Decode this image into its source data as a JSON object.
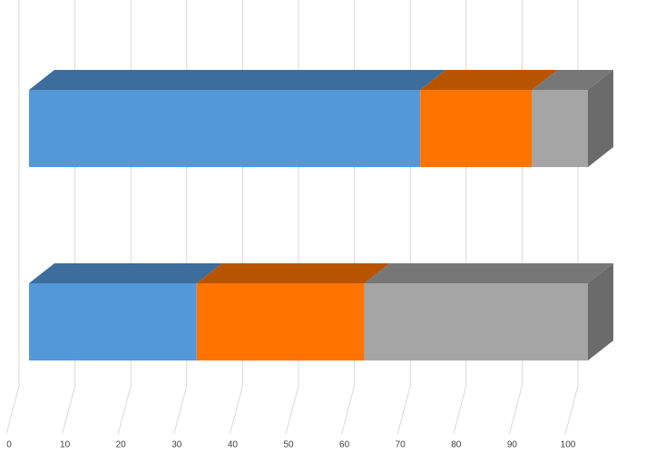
{
  "chart_data": {
    "type": "bar3d-stacked-horizontal",
    "categories": [
      null,
      null
    ],
    "series": [
      {
        "color": "#5398d9",
        "values": [
          70,
          30
        ]
      },
      {
        "color": "#ff7400",
        "values": [
          20,
          30
        ]
      },
      {
        "color": "#a5a5a5",
        "values": [
          10,
          40
        ]
      }
    ],
    "xlim": [
      0,
      100
    ],
    "xticks": [
      0,
      10,
      20,
      30,
      40,
      50,
      60,
      70,
      80,
      90,
      100
    ],
    "grid": true
  }
}
